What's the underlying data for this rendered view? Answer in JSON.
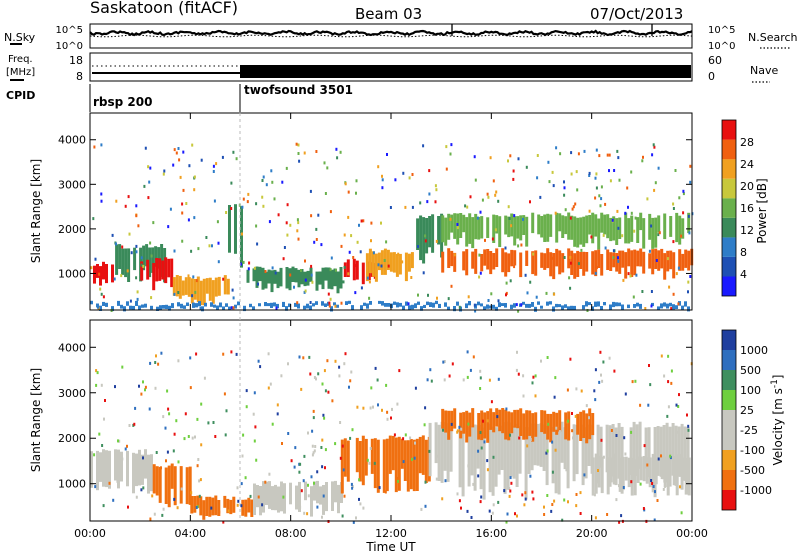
{
  "header": {
    "station": "Saskatoon (fitACF)",
    "beam": "Beam 03",
    "date": "07/Oct/2013"
  },
  "noise_panel": {
    "left_label": "N.Sky",
    "left_ticks": [
      "10^5",
      "10^0"
    ],
    "right_label": "N.Search",
    "right_ticks": [
      "10^5",
      "10^0"
    ]
  },
  "freq_panel": {
    "left_label_1": "Freq.",
    "left_label_2": "[MHz]",
    "left_ticks": [
      "18",
      "8"
    ],
    "right_label": "Nave",
    "right_ticks": [
      "60",
      "0"
    ]
  },
  "cpid": {
    "label": "CPID",
    "programs": [
      "rbsp 200",
      "twofsound 3501"
    ]
  },
  "x_axis": {
    "label": "Time UT",
    "ticks": [
      "00:00",
      "04:00",
      "08:00",
      "12:00",
      "16:00",
      "20:00",
      "00:00"
    ]
  },
  "colors": {
    "power": [
      "#1a1aff",
      "#1e50b4",
      "#2e7dc8",
      "#3a8a5a",
      "#6ab04c",
      "#c8c83c",
      "#f0a020",
      "#f06010",
      "#e81010"
    ],
    "velocity": [
      "#1f3f9f",
      "#2e6fbf",
      "#3f8f5f",
      "#6fcf3f",
      "#c8c8c0",
      "#c8c8c0",
      "#f0a020",
      "#f07010",
      "#e81010"
    ]
  },
  "chart_data": [
    {
      "type": "heatmap",
      "title": "Power",
      "ylabel": "Slant Range [km]",
      "xlabel": "Time UT",
      "x_range_hours": [
        0,
        24
      ],
      "ylim": [
        180,
        4600
      ],
      "yticks": [
        "1000",
        "2000",
        "3000",
        "4000"
      ],
      "colorbar": {
        "label": "Power [dB]",
        "tick_labels": [
          "4",
          "8",
          "12",
          "16",
          "20",
          "24",
          "28"
        ]
      },
      "regions": [
        {
          "t0": 0.0,
          "t1": 1.0,
          "r0": 750,
          "r1": 1200,
          "value_db": 26
        },
        {
          "t0": 1.0,
          "t1": 3.0,
          "r0": 800,
          "r1": 1600,
          "value_db": 12
        },
        {
          "t0": 2.0,
          "t1": 3.3,
          "r0": 650,
          "r1": 1300,
          "value_db": 28
        },
        {
          "t0": 3.3,
          "t1": 5.5,
          "r0": 300,
          "r1": 900,
          "value_db": 20
        },
        {
          "t0": 5.5,
          "t1": 6.0,
          "r0": 1000,
          "r1": 2500,
          "value_db": 10
        },
        {
          "t0": 6.0,
          "t1": 10.0,
          "r0": 600,
          "r1": 1100,
          "value_db": 12
        },
        {
          "t0": 10.0,
          "t1": 11.5,
          "r0": 800,
          "r1": 1300,
          "value_db": 28
        },
        {
          "t0": 11.0,
          "t1": 12.8,
          "r0": 850,
          "r1": 1500,
          "value_db": 22
        },
        {
          "t0": 13.0,
          "t1": 14.0,
          "r0": 1200,
          "r1": 2300,
          "value_db": 10
        },
        {
          "t0": 14.0,
          "t1": 24.0,
          "r0": 900,
          "r1": 1500,
          "value_db": 24
        },
        {
          "t0": 14.0,
          "t1": 24.0,
          "r0": 1600,
          "r1": 2300,
          "value_db": 14
        },
        {
          "t0": 0.0,
          "t1": 24.0,
          "r0": 200,
          "r1": 320,
          "value_db": 8
        }
      ]
    },
    {
      "type": "heatmap",
      "title": "Velocity",
      "ylabel": "Slant Range [km]",
      "xlabel": "Time UT",
      "x_range_hours": [
        0,
        24
      ],
      "ylim": [
        180,
        4600
      ],
      "yticks": [
        "1000",
        "2000",
        "3000",
        "4000"
      ],
      "colorbar": {
        "label": "Velocity [m s",
        "label_sup": "-1",
        "tick_labels": [
          "1000",
          "500",
          "100",
          "25",
          "-25",
          "-100",
          "-500",
          "-1000"
        ]
      },
      "regions": [
        {
          "t0": 0.0,
          "t1": 2.5,
          "r0": 750,
          "r1": 1700,
          "value_ms": 0
        },
        {
          "t0": 2.5,
          "t1": 4.0,
          "r0": 400,
          "r1": 1400,
          "value_ms": -100
        },
        {
          "t0": 4.0,
          "t1": 6.5,
          "r0": 250,
          "r1": 700,
          "value_ms": -100
        },
        {
          "t0": 6.5,
          "t1": 10.0,
          "r0": 300,
          "r1": 1000,
          "value_ms": 0
        },
        {
          "t0": 10.0,
          "t1": 13.5,
          "r0": 800,
          "r1": 2000,
          "value_ms": -200
        },
        {
          "t0": 13.5,
          "t1": 24.0,
          "r0": 700,
          "r1": 2300,
          "value_ms": 0
        },
        {
          "t0": 14.0,
          "t1": 20.0,
          "r0": 1900,
          "r1": 2600,
          "value_ms": -300
        },
        {
          "t0": 20.0,
          "t1": 24.0,
          "r0": 700,
          "r1": 1600,
          "value_ms": 0
        }
      ]
    }
  ]
}
